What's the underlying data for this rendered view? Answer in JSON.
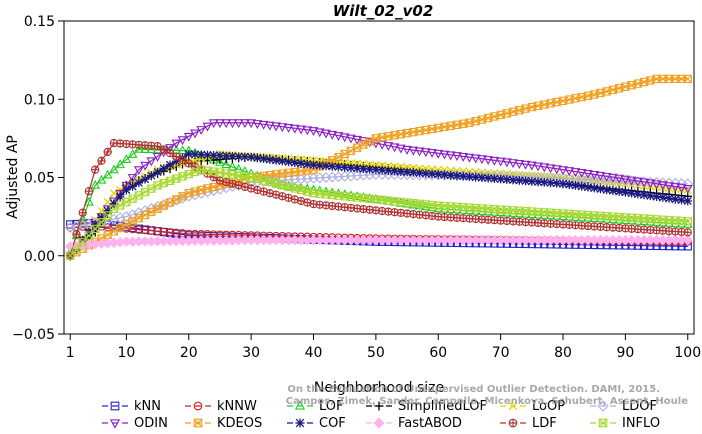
{
  "chart_data": {
    "type": "line",
    "title": "Wilt_02_v02",
    "xlabel": "Neighborhood size",
    "ylabel": "Adjusted AP",
    "xlim": [
      0,
      101
    ],
    "ylim": [
      -0.05,
      0.15
    ],
    "xticks": [
      1,
      10,
      20,
      30,
      40,
      50,
      60,
      70,
      80,
      90,
      100
    ],
    "yticks": [
      -0.05,
      0.0,
      0.05,
      0.1,
      0.15
    ],
    "ytick_labels": [
      "−0.05",
      "0.00",
      "0.05",
      "0.10",
      "0.15"
    ],
    "legend_position": "bottom",
    "watermark": [
      "On the Evaluation of Unsupervised Outlier Detection. DAMI, 2015.",
      "Campos, Zimek, Sander, Campello, Micenkova, Schubert, Assent, Houle"
    ],
    "series": [
      {
        "name": "kNN",
        "color": "#2020d0",
        "marker": "square",
        "keypoints": [
          [
            1,
            0.02
          ],
          [
            5,
            0.021
          ],
          [
            20,
            0.013
          ],
          [
            50,
            0.009
          ],
          [
            100,
            0.006
          ]
        ]
      },
      {
        "name": "kNNW",
        "color": "#cc2020",
        "marker": "circle",
        "keypoints": [
          [
            1,
            0.018
          ],
          [
            5,
            0.019
          ],
          [
            20,
            0.014
          ],
          [
            50,
            0.011
          ],
          [
            100,
            0.009
          ]
        ]
      },
      {
        "name": "LOF",
        "color": "#22cc22",
        "marker": "triangle",
        "keypoints": [
          [
            1,
            0.002
          ],
          [
            5,
            0.045
          ],
          [
            12,
            0.068
          ],
          [
            20,
            0.067
          ],
          [
            35,
            0.045
          ],
          [
            60,
            0.03
          ],
          [
            100,
            0.02
          ]
        ]
      },
      {
        "name": "SimplifiedLOF",
        "color": "#000000",
        "marker": "plus",
        "keypoints": [
          [
            1,
            0.0
          ],
          [
            5,
            0.015
          ],
          [
            10,
            0.045
          ],
          [
            20,
            0.06
          ],
          [
            30,
            0.063
          ],
          [
            40,
            0.06
          ],
          [
            60,
            0.053
          ],
          [
            80,
            0.046
          ],
          [
            100,
            0.038
          ]
        ]
      },
      {
        "name": "LoOP",
        "color": "#e6d800",
        "marker": "x",
        "keypoints": [
          [
            1,
            0.0
          ],
          [
            8,
            0.04
          ],
          [
            15,
            0.055
          ],
          [
            25,
            0.065
          ],
          [
            40,
            0.061
          ],
          [
            60,
            0.055
          ],
          [
            80,
            0.05
          ],
          [
            100,
            0.042
          ]
        ]
      },
      {
        "name": "LDOF",
        "color": "#b0b0e6",
        "marker": "diamond",
        "keypoints": [
          [
            1,
            0.018
          ],
          [
            10,
            0.025
          ],
          [
            20,
            0.038
          ],
          [
            30,
            0.047
          ],
          [
            50,
            0.052
          ],
          [
            70,
            0.051
          ],
          [
            100,
            0.046
          ]
        ]
      },
      {
        "name": "ODIN",
        "color": "#8a20c0",
        "marker": "down-triangle",
        "keypoints": [
          [
            1,
            0.0
          ],
          [
            5,
            0.02
          ],
          [
            12,
            0.055
          ],
          [
            18,
            0.072
          ],
          [
            24,
            0.085
          ],
          [
            30,
            0.085
          ],
          [
            40,
            0.08
          ],
          [
            55,
            0.068
          ],
          [
            75,
            0.058
          ],
          [
            100,
            0.043
          ]
        ]
      },
      {
        "name": "KDEOS",
        "color": "#f0a020",
        "marker": "hatched-square",
        "keypoints": [
          [
            1,
            0.0
          ],
          [
            10,
            0.02
          ],
          [
            20,
            0.04
          ],
          [
            30,
            0.05
          ],
          [
            40,
            0.055
          ],
          [
            50,
            0.075
          ],
          [
            65,
            0.085
          ],
          [
            75,
            0.095
          ],
          [
            85,
            0.103
          ],
          [
            95,
            0.113
          ],
          [
            100,
            0.113
          ]
        ]
      },
      {
        "name": "COF",
        "color": "#1a1a80",
        "marker": "star",
        "keypoints": [
          [
            1,
            0.0
          ],
          [
            5,
            0.02
          ],
          [
            10,
            0.042
          ],
          [
            20,
            0.065
          ],
          [
            30,
            0.063
          ],
          [
            40,
            0.058
          ],
          [
            60,
            0.052
          ],
          [
            80,
            0.046
          ],
          [
            100,
            0.035
          ]
        ]
      },
      {
        "name": "FastABOD",
        "color": "#ffb0ee",
        "marker": "filled-diamond",
        "keypoints": [
          [
            1,
            0.006
          ],
          [
            10,
            0.009
          ],
          [
            30,
            0.01
          ],
          [
            60,
            0.01
          ],
          [
            100,
            0.01
          ]
        ]
      },
      {
        "name": "LDF",
        "color": "#b03030",
        "marker": "circle-plus",
        "keypoints": [
          [
            1,
            0.0
          ],
          [
            5,
            0.055
          ],
          [
            8,
            0.072
          ],
          [
            15,
            0.07
          ],
          [
            25,
            0.048
          ],
          [
            40,
            0.033
          ],
          [
            60,
            0.025
          ],
          [
            100,
            0.015
          ]
        ]
      },
      {
        "name": "INFLO",
        "color": "#a8d830",
        "marker": "box-x",
        "keypoints": [
          [
            1,
            0.0
          ],
          [
            8,
            0.03
          ],
          [
            15,
            0.045
          ],
          [
            22,
            0.055
          ],
          [
            30,
            0.05
          ],
          [
            40,
            0.04
          ],
          [
            60,
            0.032
          ],
          [
            100,
            0.022
          ]
        ]
      }
    ]
  }
}
